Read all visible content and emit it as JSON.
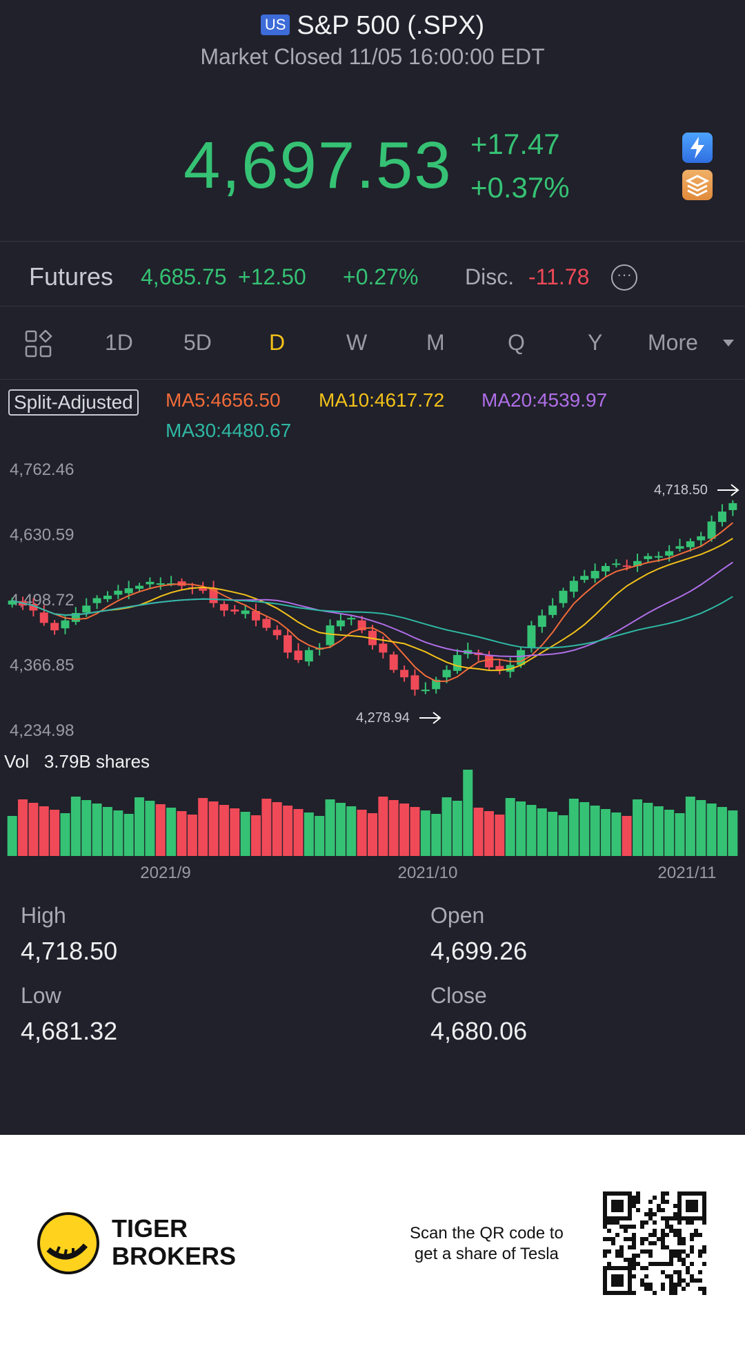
{
  "header": {
    "badge": "US",
    "title": "S&P 500 (.SPX)",
    "status": "Market Closed 11/05 16:00:00 EDT",
    "price": "4,697.53",
    "change_abs": "+17.47",
    "change_pct": "+0.37%",
    "colors": {
      "up": "#35c274",
      "down": "#f04a58",
      "accent": "#f4c21a"
    }
  },
  "futures": {
    "label": "Futures",
    "price": "4,685.75",
    "change_abs": "+12.50",
    "change_pct": "+0.27%",
    "disc_label": "Disc.",
    "disc_value": "-11.78"
  },
  "tabs": {
    "items": [
      "1D",
      "5D",
      "D",
      "W",
      "M",
      "Q",
      "Y",
      "More"
    ],
    "active": "D"
  },
  "indicators": {
    "split_adjusted": "Split-Adjusted",
    "ma5": "MA5:4656.50",
    "ma10": "MA10:4617.72",
    "ma20": "MA20:4539.97",
    "ma30": "MA30:4480.67"
  },
  "chart_data": {
    "type": "candlestick",
    "y_ticks": [
      "4,762.46",
      "4,630.59",
      "4,498.72",
      "4,366.85",
      "4,234.98"
    ],
    "ylim": [
      4234.98,
      4762.46
    ],
    "x_ticks": [
      "2021/9",
      "2021/10",
      "2021/11"
    ],
    "high_marker": "4,718.50",
    "low_marker": "4,278.94",
    "closes": [
      4500,
      4490,
      4480,
      4455,
      4440,
      4460,
      4475,
      4490,
      4505,
      4510,
      4520,
      4525,
      4530,
      4538,
      4535,
      4535,
      4530,
      4525,
      4520,
      4495,
      4480,
      4478,
      4480,
      4460,
      4445,
      4430,
      4395,
      4380,
      4400,
      4405,
      4450,
      4460,
      4465,
      4440,
      4410,
      4395,
      4360,
      4345,
      4320,
      4320,
      4340,
      4360,
      4390,
      4400,
      4390,
      4365,
      4360,
      4370,
      4400,
      4450,
      4470,
      4490,
      4520,
      4540,
      4550,
      4560,
      4570,
      4575,
      4570,
      4580,
      4590,
      4590,
      4600,
      4610,
      4620,
      4630,
      4660,
      4680,
      4697
    ],
    "volume_label": "Vol",
    "volume_value": "3.79B shares"
  },
  "stats": {
    "high_label": "High",
    "high": "4,718.50",
    "open_label": "Open",
    "open": "4,699.26",
    "low_label": "Low",
    "low": "4,681.32",
    "close_label": "Close",
    "close": "4,680.06"
  },
  "footer": {
    "brand_line1": "TIGER",
    "brand_line2": "BROKERS",
    "scan_line1": "Scan the QR code to",
    "scan_line2": "get a share of Tesla"
  }
}
